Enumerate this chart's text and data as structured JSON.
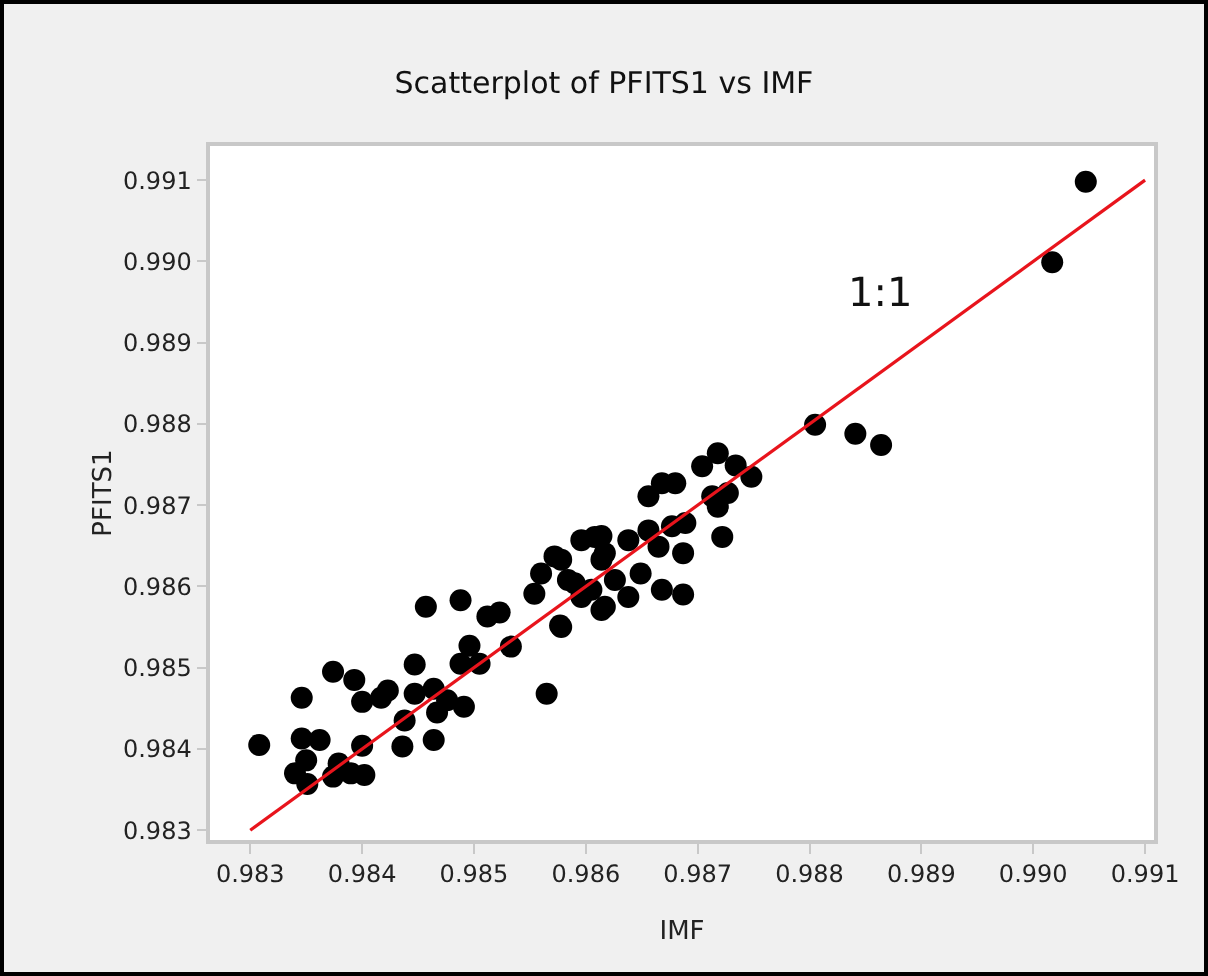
{
  "chart_data": {
    "type": "scatter",
    "title": "Scatterplot of PFITS1 vs IMF",
    "xlabel": "IMF",
    "ylabel": "PFITS1",
    "xlim": [
      0.98264,
      0.99108
    ],
    "ylim": [
      0.98288,
      0.99142
    ],
    "xticks": [
      {
        "value": 0.983,
        "label": "0.983"
      },
      {
        "value": 0.984,
        "label": "0.984"
      },
      {
        "value": 0.985,
        "label": "0.985"
      },
      {
        "value": 0.986,
        "label": "0.986"
      },
      {
        "value": 0.987,
        "label": "0.987"
      },
      {
        "value": 0.988,
        "label": "0.988"
      },
      {
        "value": 0.989,
        "label": "0.989"
      },
      {
        "value": 0.99,
        "label": "0.990"
      },
      {
        "value": 0.991,
        "label": "0.991"
      }
    ],
    "yticks": [
      {
        "value": 0.983,
        "label": "0.983"
      },
      {
        "value": 0.984,
        "label": "0.984"
      },
      {
        "value": 0.985,
        "label": "0.985"
      },
      {
        "value": 0.986,
        "label": "0.986"
      },
      {
        "value": 0.987,
        "label": "0.987"
      },
      {
        "value": 0.988,
        "label": "0.988"
      },
      {
        "value": 0.989,
        "label": "0.989"
      },
      {
        "value": 0.99,
        "label": "0.990"
      },
      {
        "value": 0.991,
        "label": "0.991"
      }
    ],
    "grid": false,
    "marker": "circle",
    "annotations": [
      "1:1"
    ],
    "series": [
      {
        "color": "#000000",
        "x": [
          0.98308,
          0.98346,
          0.98374,
          0.98393,
          0.984,
          0.98417,
          0.98423,
          0.98346,
          0.98362,
          0.9834,
          0.9835,
          0.98351,
          0.98374,
          0.98379,
          0.9839,
          0.98402,
          0.984,
          0.98438,
          0.98436,
          0.98447,
          0.98447,
          0.98464,
          0.98467,
          0.98464,
          0.98476,
          0.98491,
          0.98457,
          0.98488,
          0.98496,
          0.98488,
          0.98505,
          0.98512,
          0.98523,
          0.98533,
          0.98565,
          0.98554,
          0.9856,
          0.98572,
          0.98577,
          0.98584,
          0.98596,
          0.98608,
          0.98617,
          0.98605,
          0.98617,
          0.98596,
          0.98578,
          0.98614,
          0.98614,
          0.98626,
          0.98638,
          0.98649,
          0.98656,
          0.98668,
          0.98665,
          0.98687,
          0.98687,
          0.98677,
          0.98689,
          0.98656,
          0.98668,
          0.9868,
          0.98704,
          0.98718,
          0.98734,
          0.98748,
          0.98713,
          0.98727,
          0.98718,
          0.98722,
          0.98614,
          0.98638,
          0.98578,
          0.9859,
          0.98805,
          0.98841,
          0.98864,
          0.99047,
          0.99017
        ],
        "values": [
          0.98405,
          0.98463,
          0.98495,
          0.98485,
          0.98458,
          0.98463,
          0.98472,
          0.98413,
          0.98411,
          0.9837,
          0.98386,
          0.98357,
          0.98366,
          0.98382,
          0.9837,
          0.98368,
          0.98404,
          0.98435,
          0.98403,
          0.98504,
          0.98468,
          0.98474,
          0.98445,
          0.98411,
          0.9846,
          0.98452,
          0.98575,
          0.98583,
          0.98527,
          0.98505,
          0.98505,
          0.98563,
          0.98568,
          0.98526,
          0.98468,
          0.98591,
          0.98616,
          0.98637,
          0.98552,
          0.98608,
          0.98657,
          0.98661,
          0.98641,
          0.98596,
          0.98575,
          0.98587,
          0.98633,
          0.98662,
          0.98633,
          0.98608,
          0.98657,
          0.98616,
          0.98669,
          0.98596,
          0.98649,
          0.9859,
          0.98641,
          0.98674,
          0.98678,
          0.98711,
          0.98727,
          0.98727,
          0.98748,
          0.98764,
          0.98749,
          0.98735,
          0.98711,
          0.98715,
          0.98698,
          0.98661,
          0.98571,
          0.98587,
          0.9855,
          0.98604,
          0.98799,
          0.98788,
          0.98774,
          0.99098,
          0.98999
        ]
      },
      {
        "type": "line",
        "color": "#e8141c",
        "x": [
          0.983,
          0.991
        ],
        "values": [
          0.983,
          0.991
        ],
        "marker": "none",
        "line_style": "solid"
      }
    ]
  }
}
